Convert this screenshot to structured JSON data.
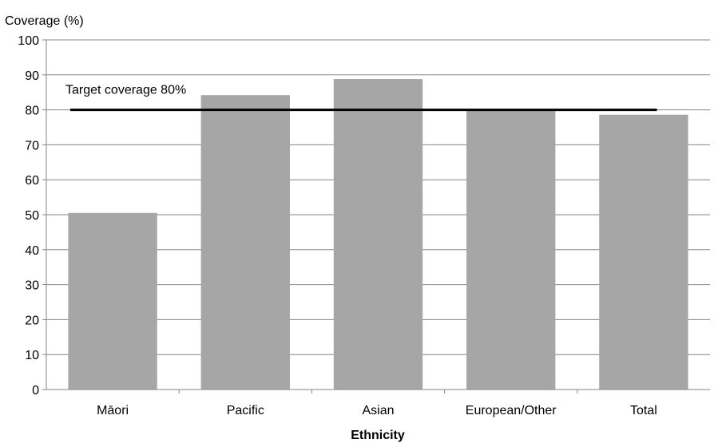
{
  "chart_data": {
    "type": "bar",
    "title": "",
    "ylabel": "Coverage  (%)",
    "xlabel": "Ethnicity",
    "categories": [
      "Māori",
      "Pacific",
      "Asian",
      "European/Other",
      "Total"
    ],
    "values": [
      50.5,
      84.2,
      88.8,
      79.8,
      78.6
    ],
    "ylim": [
      0,
      100
    ],
    "yticks": [
      0,
      10,
      20,
      30,
      40,
      50,
      60,
      70,
      80,
      90,
      100
    ],
    "grid": true,
    "legend": "none",
    "bar_color": "#a6a6a6",
    "reference_line": {
      "label": "Target coverage 80%",
      "value": 80,
      "color": "#000000"
    }
  }
}
